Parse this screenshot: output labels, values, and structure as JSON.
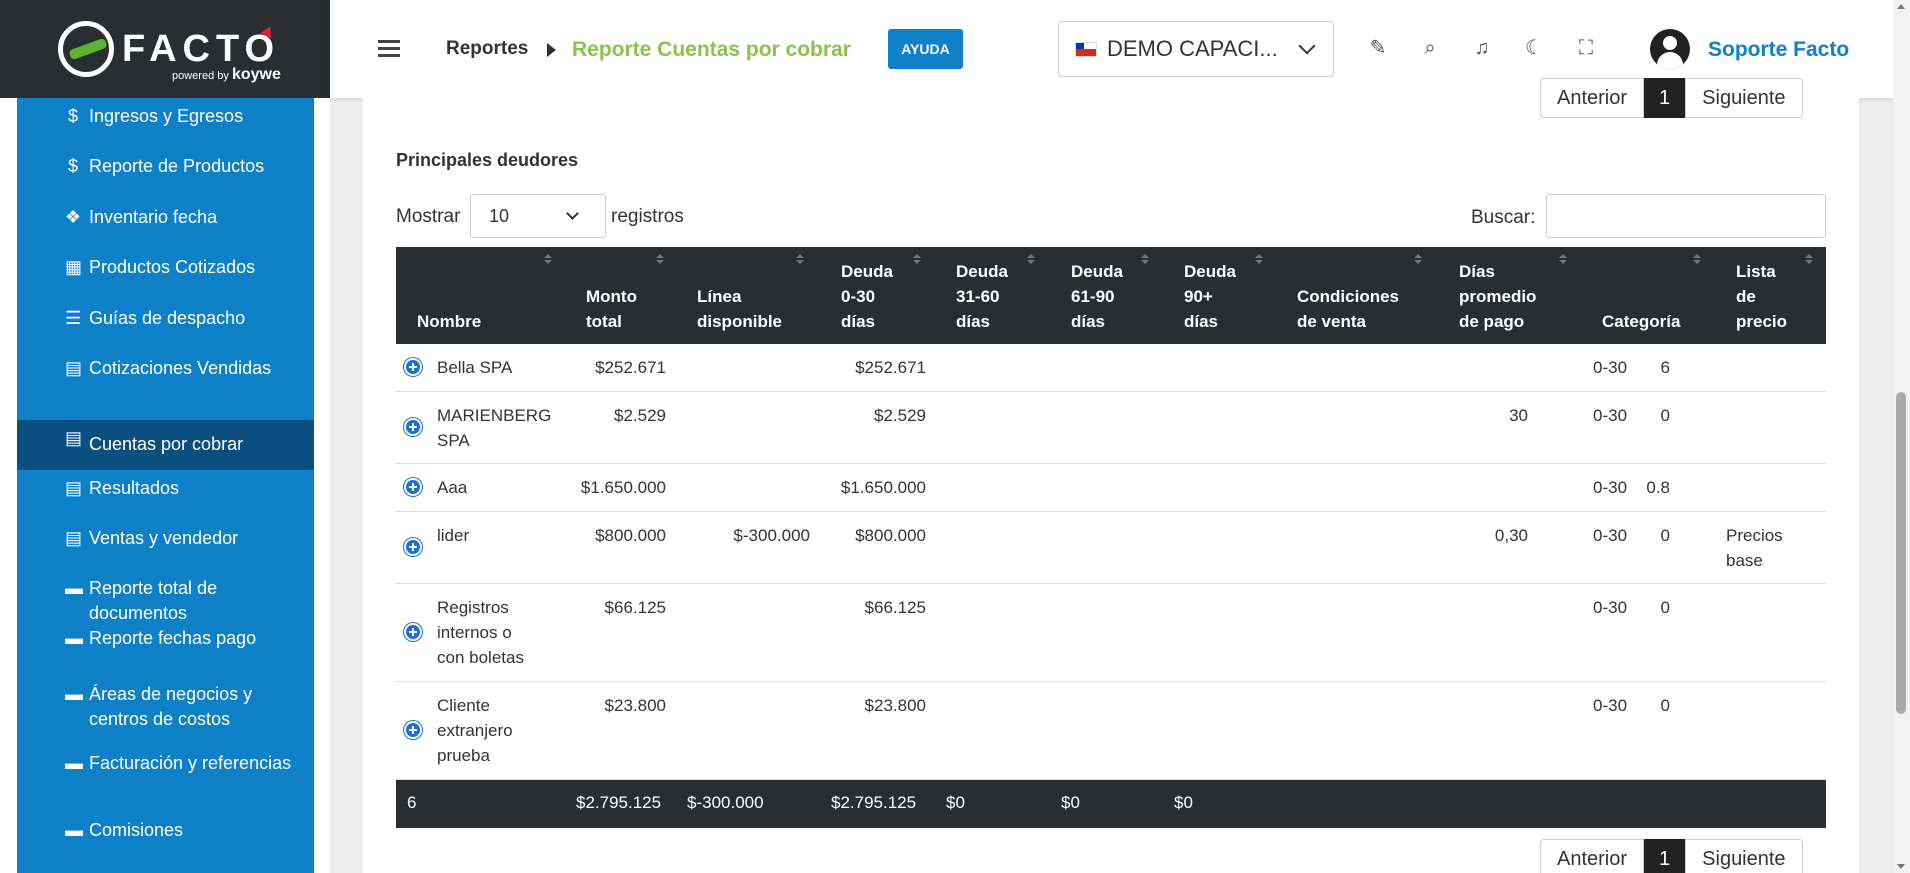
{
  "brand": {
    "name": "FACTO",
    "powered": "powered by",
    "sub": "koywe"
  },
  "sidebar": {
    "items": [
      {
        "label": "Ingresos y Egresos",
        "icon": "dollar-icon",
        "glyph": "$"
      },
      {
        "label": "Reporte de Productos",
        "icon": "dollar-icon",
        "glyph": "$"
      },
      {
        "label": "Inventario fecha",
        "icon": "cubes-icon",
        "glyph": "❖"
      },
      {
        "label": "Productos Cotizados",
        "icon": "calculator-icon",
        "glyph": "▦"
      },
      {
        "label": "Guías de despacho",
        "icon": "list-icon",
        "glyph": "☰"
      },
      {
        "label": "Cotizaciones Vendidas",
        "icon": "document-icon",
        "glyph": "▤"
      },
      {
        "label": "Cuentas por cobrar",
        "icon": "document-icon",
        "glyph": "▤",
        "active": true
      },
      {
        "label": "Resultados",
        "icon": "document-icon",
        "glyph": "▤"
      },
      {
        "label": "Ventas y vendedor",
        "icon": "document-icon",
        "glyph": "▤"
      },
      {
        "label": "Reporte total de documentos",
        "icon": "archive-icon",
        "glyph": "▬"
      },
      {
        "label": "Reporte fechas pago",
        "icon": "archive-icon",
        "glyph": "▬"
      },
      {
        "label": "Áreas de negocios y centros de costos",
        "icon": "archive-icon",
        "glyph": "▬"
      },
      {
        "label": "Facturación y referencias",
        "icon": "archive-icon",
        "glyph": "▬"
      },
      {
        "label": "Comisiones",
        "icon": "archive-icon",
        "glyph": "▬"
      }
    ]
  },
  "header": {
    "crumb_root": "Reportes",
    "crumb_current": "Reporte Cuentas por cobrar",
    "help_label": "AYUDA",
    "company": "DEMO CAPACI...",
    "user": "Soporte Facto",
    "icons": [
      "edit-icon",
      "search-icon",
      "bell-icon",
      "moon-icon",
      "fullscreen-icon"
    ]
  },
  "pager": {
    "prev": "Anterior",
    "page": "1",
    "next": "Siguiente"
  },
  "section": {
    "title": "Principales deudores",
    "show_label": "Mostrar",
    "show_value": "10",
    "records_label": "registros",
    "search_label": "Buscar:"
  },
  "table": {
    "headers": {
      "nombre": "Nombre",
      "monto": [
        "Monto",
        "total"
      ],
      "linea": [
        "Línea",
        "disponible"
      ],
      "d030": [
        "Deuda",
        "0-30",
        "días"
      ],
      "d3160": [
        "Deuda",
        "31-60",
        "días"
      ],
      "d6190": [
        "Deuda",
        "61-90",
        "días"
      ],
      "d90": [
        "Deuda",
        "90+",
        "días"
      ],
      "cond": [
        "Condiciones",
        "de venta"
      ],
      "dias": [
        "Días",
        "promedio",
        "de pago"
      ],
      "cat": "Categoría",
      "lista": [
        "Lista",
        "de",
        "precio"
      ]
    },
    "rows": [
      {
        "nombre": [
          "Bella SPA"
        ],
        "monto": "$252.671",
        "linea": "",
        "d030": "$252.671",
        "cond": "",
        "dias": "6",
        "cat": "0-30",
        "lista": []
      },
      {
        "nombre": [
          "MARIENBERG",
          "SPA"
        ],
        "monto": "$2.529",
        "linea": "",
        "d030": "$2.529",
        "cond": "30",
        "dias": "0",
        "cat": "0-30",
        "lista": []
      },
      {
        "nombre": [
          "Aaa"
        ],
        "monto": "$1.650.000",
        "linea": "",
        "d030": "$1.650.000",
        "cond": "",
        "dias": "0.8",
        "cat": "0-30",
        "lista": []
      },
      {
        "nombre": [
          "lider"
        ],
        "monto": "$800.000",
        "linea": "$-300.000",
        "d030": "$800.000",
        "cond": "0,30",
        "dias": "0",
        "cat": "0-30",
        "lista": [
          "Precios",
          "base"
        ]
      },
      {
        "nombre": [
          "Registros",
          "internos o",
          "con boletas"
        ],
        "monto": "$66.125",
        "linea": "",
        "d030": "$66.125",
        "cond": "",
        "dias": "0",
        "cat": "0-30",
        "lista": []
      },
      {
        "nombre": [
          "Cliente",
          "extranjero",
          "prueba"
        ],
        "monto": "$23.800",
        "linea": "",
        "d030": "$23.800",
        "cond": "",
        "dias": "0",
        "cat": "0-30",
        "lista": []
      }
    ],
    "footer": {
      "count": "6",
      "monto": "$2.795.125",
      "linea": "$-300.000",
      "d030": "$2.795.125",
      "d3160": "$0",
      "d6190": "$0",
      "d90": "$0"
    }
  }
}
